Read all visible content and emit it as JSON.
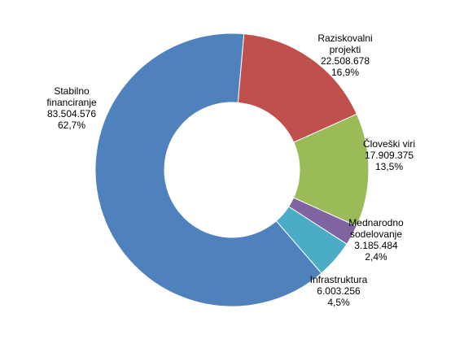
{
  "chart_data": {
    "type": "pie",
    "donut": true,
    "title": "",
    "legend": "none",
    "slices": [
      {
        "label_lines": [
          "Raziskovalni",
          "projekti"
        ],
        "value": 22508678,
        "value_text": "22.508.678",
        "percent_text": "16,9%",
        "color": "#C0504D"
      },
      {
        "label_lines": [
          "Človeški viri"
        ],
        "value": 17909375,
        "value_text": "17.909.375",
        "percent_text": "13,5%",
        "color": "#9BBB59"
      },
      {
        "label_lines": [
          "Mednarodno",
          "sodelovanje"
        ],
        "value": 3185484,
        "value_text": "3.185.484",
        "percent_text": "2,4%",
        "color": "#8064A2"
      },
      {
        "label_lines": [
          "Infrastruktura"
        ],
        "value": 6003256,
        "value_text": "6.003.256",
        "percent_text": "4,5%",
        "color": "#4BACC6"
      },
      {
        "label_lines": [
          "Stabilno",
          "financiranje"
        ],
        "value": 83504576,
        "value_text": "83.504.576",
        "percent_text": "62,7%",
        "color": "#4F81BD"
      }
    ]
  }
}
